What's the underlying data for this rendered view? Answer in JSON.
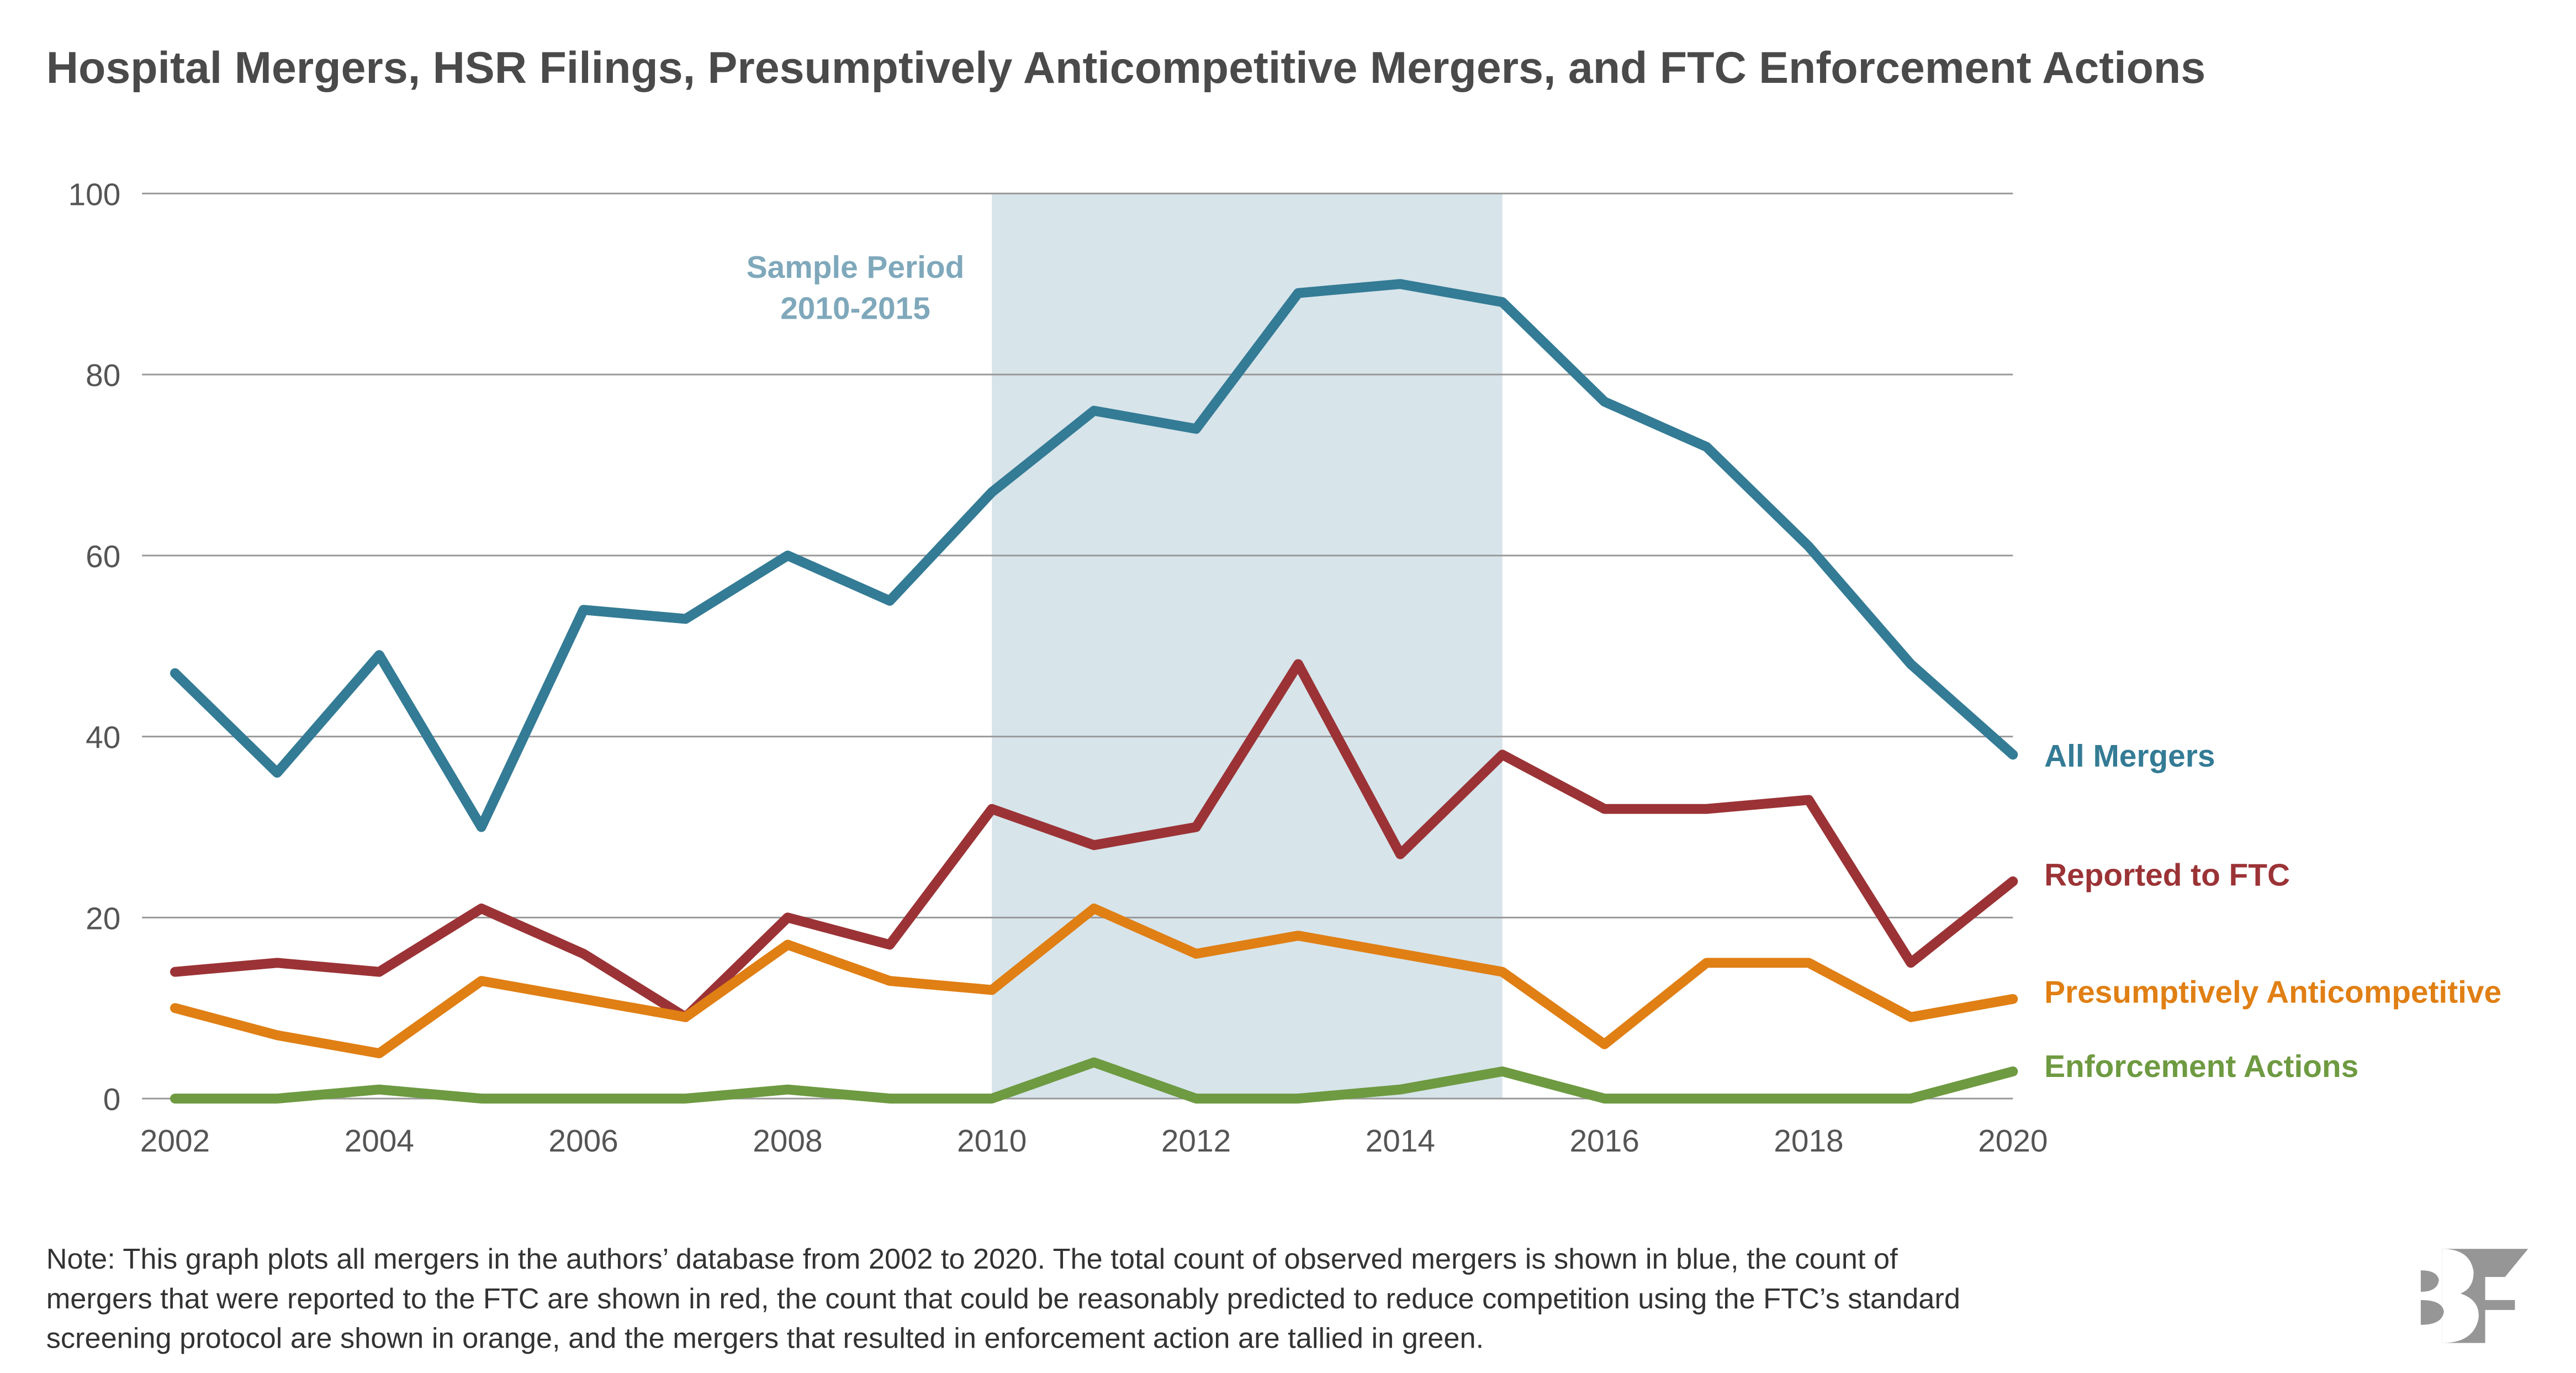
{
  "chart_data": {
    "type": "line",
    "title": "Hospital Mergers, HSR Filings, Presumptively Anticompetitive Mergers, and FTC Enforcement Actions",
    "xlabel": "",
    "ylabel": "",
    "x": [
      2002,
      2003,
      2004,
      2005,
      2006,
      2007,
      2008,
      2009,
      2010,
      2011,
      2012,
      2013,
      2014,
      2015,
      2016,
      2017,
      2018,
      2019,
      2020
    ],
    "xticks": [
      "2002",
      "2004",
      "2006",
      "2008",
      "2010",
      "2012",
      "2014",
      "2016",
      "2018",
      "2020"
    ],
    "yticks": [
      "0",
      "20",
      "40",
      "60",
      "80",
      "100"
    ],
    "ylim": [
      0,
      100
    ],
    "grid": true,
    "legend_placement": "right, inline labels",
    "series": [
      {
        "name": "All Mergers",
        "color": "#347b95",
        "values": [
          47,
          36,
          49,
          30,
          54,
          53,
          60,
          55,
          67,
          76,
          74,
          89,
          90,
          88,
          77,
          72,
          61,
          48,
          38
        ]
      },
      {
        "name": "Reported to FTC",
        "color": "#9b3336",
        "values": [
          14,
          15,
          14,
          21,
          16,
          9,
          20,
          17,
          32,
          28,
          30,
          48,
          27,
          38,
          32,
          32,
          33,
          15,
          24
        ]
      },
      {
        "name": "Presumptively Anticompetitive",
        "color": "#e07f14",
        "values": [
          10,
          7,
          5,
          13,
          11,
          9,
          17,
          13,
          12,
          21,
          16,
          18,
          16,
          14,
          6,
          15,
          15,
          9,
          11
        ]
      },
      {
        "name": "Enforcement Actions",
        "color": "#6e9a41",
        "values": [
          0,
          0,
          1,
          0,
          0,
          0,
          1,
          0,
          0,
          4,
          0,
          0,
          1,
          3,
          0,
          0,
          0,
          0,
          3
        ]
      }
    ],
    "annotation": {
      "line1": "Sample Period",
      "line2": "2010-2015",
      "range": [
        2010,
        2015
      ],
      "shade_color": "#d7e4ea"
    }
  },
  "note": [
    "Note: This graph plots all mergers in the authors’ database from 2002 to 2020. The total count of observed mergers is shown in blue, the count of",
    "mergers that were reported to the FTC are shown in red, the count that could be reasonably predicted to reduce competition using the FTC’s standard",
    "screening protocol are shown in orange, and the mergers that resulted in enforcement action are tallied in green."
  ],
  "logo": {
    "text": "BF",
    "color": "#969696"
  }
}
